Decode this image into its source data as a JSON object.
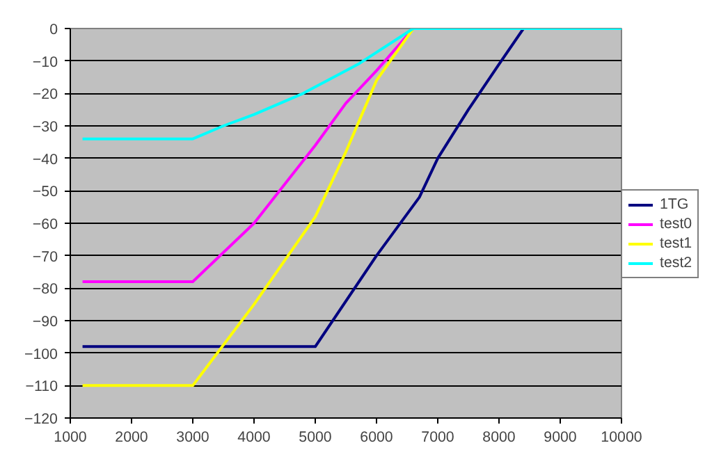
{
  "chart_data": {
    "type": "line",
    "xlim": [
      1000,
      10000
    ],
    "xticks": [
      1000,
      2000,
      3000,
      4000,
      5000,
      6000,
      7000,
      8000,
      9000,
      10000
    ],
    "ylim": [
      -120,
      0
    ],
    "yticks": [
      -120,
      -110,
      -100,
      -90,
      -80,
      -70,
      -60,
      -50,
      -40,
      -30,
      -20,
      -10,
      0
    ],
    "grid": "y",
    "legend": "right",
    "marker": "none",
    "line_style": "solid",
    "series": [
      {
        "name": "1TG",
        "color": "#000080",
        "x": [
          1200,
          5000,
          6000,
          6700,
          7000,
          7500,
          8000,
          8400,
          10000
        ],
        "values": [
          -98,
          -98,
          -70,
          -52,
          -40,
          -25,
          -11,
          0,
          0
        ]
      },
      {
        "name": "test0",
        "color": "#ff00ff",
        "x": [
          1200,
          3000,
          4000,
          5000,
          5500,
          6000,
          6600,
          10000
        ],
        "values": [
          -78,
          -78,
          -60,
          -36,
          -23,
          -13,
          0,
          0
        ]
      },
      {
        "name": "test1",
        "color": "#ffff00",
        "x": [
          1200,
          3000,
          4000,
          5000,
          5500,
          6000,
          6600,
          10000
        ],
        "values": [
          -110,
          -110,
          -85,
          -58,
          -38,
          -16,
          0,
          0
        ]
      },
      {
        "name": "test2",
        "color": "#00ffff",
        "x": [
          1200,
          3000,
          3500,
          4000,
          4800,
          5700,
          6600,
          10000
        ],
        "values": [
          -34,
          -34,
          -30,
          -26.5,
          -20,
          -11,
          0,
          0
        ]
      }
    ]
  }
}
